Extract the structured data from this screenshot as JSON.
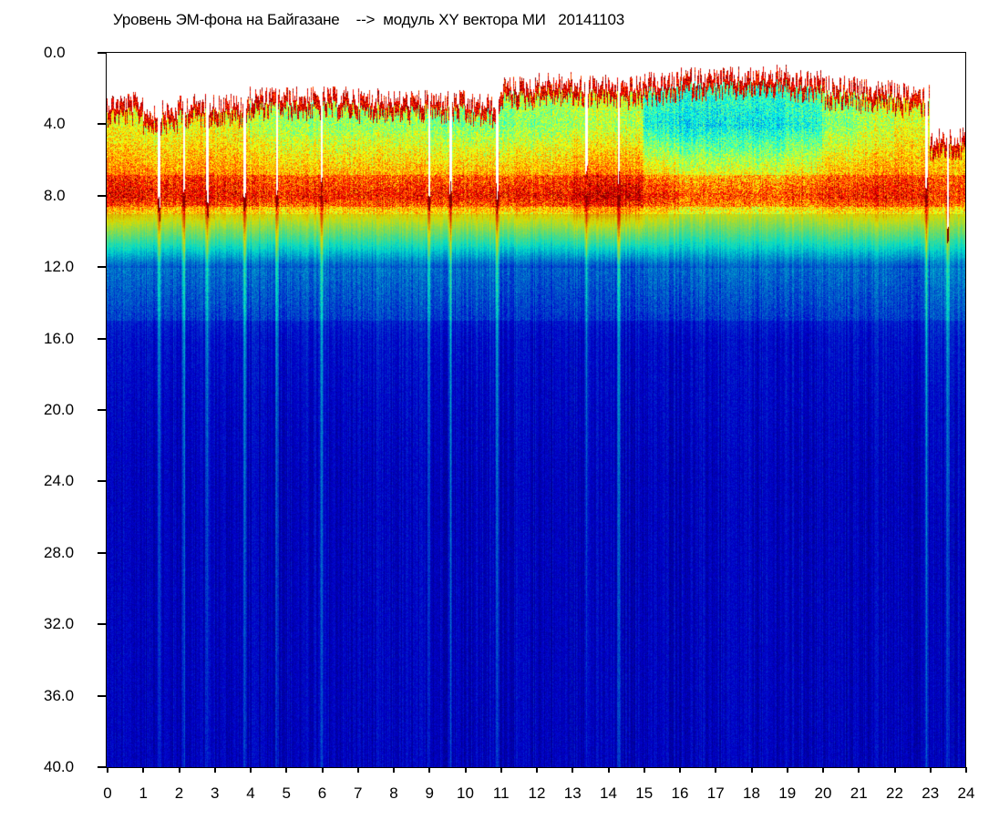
{
  "chart_data": {
    "type": "heatmap",
    "title": "Уровень ЭМ-фона на Байгазане    -->  модуль XY вектора МИ   20141103",
    "xlabel": "",
    "ylabel": "",
    "xlim": [
      0,
      24
    ],
    "ylim": [
      0,
      40
    ],
    "y_inverted": true,
    "x_ticks": [
      "0",
      "1",
      "2",
      "3",
      "4",
      "5",
      "6",
      "7",
      "8",
      "9",
      "10",
      "11",
      "12",
      "13",
      "14",
      "15",
      "16",
      "17",
      "18",
      "19",
      "20",
      "21",
      "22",
      "23",
      "24"
    ],
    "y_ticks": [
      "0.0",
      "4.0",
      "8.0",
      "12.0",
      "16.0",
      "20.0",
      "24.0",
      "28.0",
      "32.0",
      "36.0",
      "40.0"
    ],
    "colormap": "jet",
    "empty_color": "#ffffff",
    "top_edge_per_hour": [
      2.5,
      3.0,
      2.6,
      2.6,
      2.2,
      2.2,
      2.2,
      2.3,
      2.4,
      2.4,
      2.6,
      1.6,
      1.4,
      1.5,
      1.6,
      1.4,
      1.1,
      1.1,
      1.0,
      1.3,
      1.6,
      1.8,
      2.0,
      4.5
    ],
    "intensity_grid_y": [
      0,
      4,
      8,
      12,
      16,
      20,
      24,
      28,
      32,
      36,
      40
    ],
    "intensity_grid": [
      [
        0.55,
        0.6,
        0.82,
        0.22,
        0.14,
        0.12,
        0.11,
        0.11,
        0.11,
        0.11,
        0.11
      ],
      [
        0.55,
        0.58,
        0.8,
        0.22,
        0.14,
        0.12,
        0.11,
        0.11,
        0.11,
        0.11,
        0.11
      ],
      [
        0.55,
        0.6,
        0.82,
        0.22,
        0.14,
        0.12,
        0.11,
        0.11,
        0.11,
        0.11,
        0.11
      ],
      [
        0.55,
        0.6,
        0.8,
        0.22,
        0.14,
        0.12,
        0.11,
        0.11,
        0.11,
        0.11,
        0.11
      ],
      [
        0.55,
        0.55,
        0.78,
        0.22,
        0.14,
        0.12,
        0.11,
        0.11,
        0.11,
        0.11,
        0.11
      ],
      [
        0.55,
        0.52,
        0.78,
        0.22,
        0.14,
        0.12,
        0.11,
        0.11,
        0.11,
        0.11,
        0.11
      ],
      [
        0.55,
        0.52,
        0.78,
        0.22,
        0.14,
        0.12,
        0.11,
        0.11,
        0.11,
        0.11,
        0.11
      ],
      [
        0.55,
        0.52,
        0.78,
        0.22,
        0.14,
        0.12,
        0.11,
        0.11,
        0.11,
        0.11,
        0.11
      ],
      [
        0.55,
        0.52,
        0.78,
        0.22,
        0.14,
        0.12,
        0.11,
        0.11,
        0.11,
        0.11,
        0.11
      ],
      [
        0.55,
        0.5,
        0.8,
        0.22,
        0.14,
        0.12,
        0.11,
        0.11,
        0.11,
        0.11,
        0.11
      ],
      [
        0.55,
        0.5,
        0.8,
        0.22,
        0.14,
        0.12,
        0.11,
        0.11,
        0.11,
        0.11,
        0.11
      ],
      [
        0.6,
        0.5,
        0.8,
        0.2,
        0.13,
        0.12,
        0.11,
        0.11,
        0.11,
        0.11,
        0.11
      ],
      [
        0.6,
        0.52,
        0.8,
        0.2,
        0.13,
        0.12,
        0.11,
        0.11,
        0.11,
        0.11,
        0.11
      ],
      [
        0.6,
        0.55,
        0.86,
        0.2,
        0.13,
        0.12,
        0.11,
        0.11,
        0.11,
        0.11,
        0.11
      ],
      [
        0.6,
        0.55,
        0.86,
        0.2,
        0.13,
        0.12,
        0.11,
        0.11,
        0.11,
        0.11,
        0.11
      ],
      [
        0.5,
        0.38,
        0.78,
        0.22,
        0.13,
        0.12,
        0.11,
        0.11,
        0.11,
        0.11,
        0.11
      ],
      [
        0.5,
        0.35,
        0.72,
        0.22,
        0.13,
        0.12,
        0.11,
        0.11,
        0.11,
        0.11,
        0.11
      ],
      [
        0.5,
        0.35,
        0.72,
        0.22,
        0.13,
        0.12,
        0.11,
        0.11,
        0.11,
        0.11,
        0.11
      ],
      [
        0.5,
        0.35,
        0.72,
        0.22,
        0.13,
        0.12,
        0.11,
        0.11,
        0.11,
        0.11,
        0.11
      ],
      [
        0.5,
        0.4,
        0.75,
        0.22,
        0.13,
        0.12,
        0.11,
        0.11,
        0.11,
        0.11,
        0.11
      ],
      [
        0.55,
        0.5,
        0.78,
        0.22,
        0.14,
        0.12,
        0.11,
        0.11,
        0.11,
        0.11,
        0.11
      ],
      [
        0.58,
        0.55,
        0.8,
        0.22,
        0.14,
        0.12,
        0.11,
        0.11,
        0.11,
        0.11,
        0.11
      ],
      [
        0.6,
        0.6,
        0.8,
        0.2,
        0.14,
        0.12,
        0.11,
        0.11,
        0.11,
        0.11,
        0.11
      ],
      [
        0.5,
        0.6,
        0.75,
        0.25,
        0.16,
        0.13,
        0.12,
        0.11,
        0.11,
        0.11,
        0.11
      ]
    ],
    "streaks_hours": [
      1.45,
      2.15,
      2.8,
      3.85,
      4.75,
      6.0,
      9.0,
      9.6,
      10.9,
      13.4,
      14.3,
      22.9,
      23.5
    ]
  }
}
